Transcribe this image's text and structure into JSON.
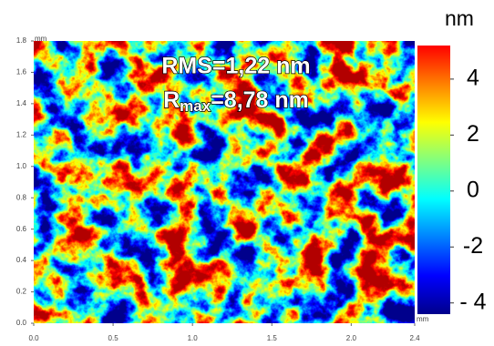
{
  "chart_data": {
    "type": "heatmap",
    "x_unit": "mm",
    "y_unit": "mm",
    "color_unit": "nm",
    "annotation": "RMS=1,22 nm",
    "annotation_2": {
      "main": "R",
      "sub": "max",
      "rest": "=8,78 nm"
    },
    "xlim": [
      0,
      2.4
    ],
    "ylim": [
      0,
      1.8
    ],
    "xticks": [
      {
        "value": 0,
        "label": "0.0"
      },
      0.5,
      {
        "value": 1,
        "label": "1.0"
      },
      1.5,
      {
        "value": 2,
        "label": "2.0"
      },
      2.4
    ],
    "yticks": [
      {
        "value": 0,
        "label": "0.0"
      },
      0.2,
      0.4,
      0.6,
      0.8,
      {
        "value": 1,
        "label": "1.0"
      },
      1.2,
      1.4,
      1.6,
      1.8
    ],
    "clim": [
      -4.4,
      5.2
    ],
    "cticks": [
      {
        "value": -4,
        "label": "- 4"
      },
      -2,
      0,
      2,
      4
    ],
    "colormap": [
      "#00008b",
      "#0000ff",
      "#0080ff",
      "#00ffff",
      "#80ff80",
      "#ffff00",
      "#ff8000",
      "#ff0000"
    ]
  }
}
